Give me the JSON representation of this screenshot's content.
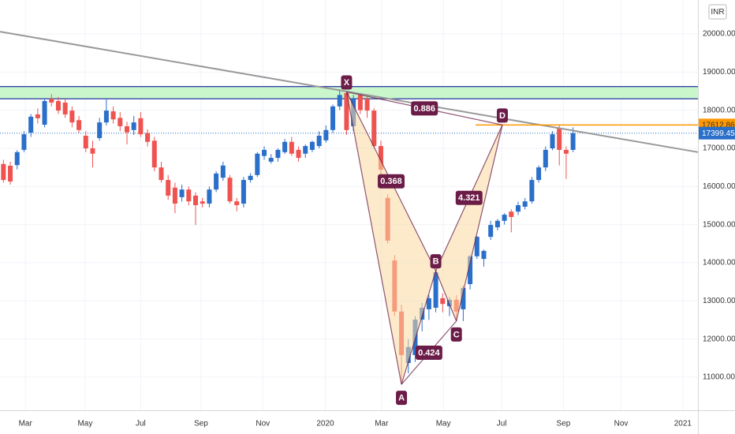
{
  "chart_data": {
    "type": "candlestick",
    "currency": "INR",
    "x": [
      0,
      1,
      2,
      3,
      4,
      5,
      6,
      7,
      8,
      9,
      10,
      11,
      12,
      13,
      14,
      15,
      16,
      17,
      18,
      19,
      20,
      21,
      22,
      23,
      24,
      25,
      26,
      27,
      28,
      29,
      30,
      31,
      32,
      33,
      34,
      35,
      36,
      37,
      38,
      39,
      40,
      41,
      42,
      43,
      44,
      45,
      46,
      47,
      48,
      49,
      50,
      51,
      52,
      53,
      54,
      55,
      56,
      57,
      58,
      59,
      60,
      61,
      62,
      63,
      64,
      65,
      66,
      67,
      68,
      69,
      70,
      71,
      72,
      73,
      74,
      75,
      76,
      77,
      78,
      79,
      80,
      81,
      82,
      83
    ],
    "open": [
      16590,
      16545,
      16560,
      16960,
      17410,
      17890,
      17620,
      18300,
      18240,
      18200,
      17990,
      17740,
      17330,
      17000,
      17270,
      17680,
      17970,
      17800,
      17580,
      17480,
      17790,
      17400,
      17200,
      16500,
      16170,
      15970,
      15720,
      15920,
      15760,
      15610,
      15550,
      15920,
      16230,
      16230,
      15610,
      15550,
      16170,
      16300,
      16800,
      16650,
      16750,
      16900,
      17170,
      16960,
      16860,
      16960,
      17060,
      17210,
      17480,
      18100,
      18450,
      17580,
      18400,
      18300,
      17990,
      17060,
      15700,
      14060,
      12720,
      11370,
      11580,
      12510,
      12780,
      12820,
      13070,
      12860,
      13030,
      12780,
      13440,
      14170,
      14100,
      14680,
      14930,
      15100,
      15340,
      15340,
      15470,
      15610,
      16170,
      16500,
      17000,
      17530,
      16960,
      16960
    ],
    "high": [
      16700,
      16650,
      16950,
      17450,
      17900,
      18050,
      18300,
      18420,
      18350,
      18300,
      18100,
      17850,
      17450,
      17200,
      17800,
      18280,
      18100,
      17950,
      17700,
      17850,
      17950,
      17500,
      17300,
      16650,
      16300,
      16100,
      16050,
      16000,
      15850,
      15700,
      16000,
      16400,
      16650,
      16300,
      15700,
      16250,
      16350,
      16900,
      17050,
      16850,
      17000,
      17250,
      17300,
      17050,
      17100,
      17200,
      17450,
      17600,
      18150,
      18550,
      18500,
      18400,
      18450,
      18350,
      18050,
      17200,
      15800,
      14200,
      12900,
      12000,
      12600,
      12950,
      13150,
      13790,
      13200,
      13100,
      13150,
      13400,
      14200,
      14700,
      14350,
      15100,
      15150,
      15300,
      15400,
      15600,
      15700,
      16250,
      16550,
      17050,
      17450,
      17620,
      17050,
      17550
    ],
    "low": [
      16100,
      16050,
      16450,
      16900,
      17300,
      17650,
      17550,
      18100,
      17900,
      17800,
      17550,
      17400,
      16900,
      16500,
      17200,
      17600,
      17650,
      17450,
      17100,
      17350,
      17300,
      17050,
      16400,
      16100,
      15650,
      15300,
      15600,
      15500,
      14990,
      15450,
      15450,
      15850,
      16150,
      15550,
      15350,
      15450,
      16100,
      16250,
      16700,
      16600,
      16650,
      16850,
      16800,
      16650,
      16750,
      16900,
      17000,
      17150,
      17400,
      18000,
      17350,
      17450,
      17900,
      17800,
      17000,
      16300,
      14500,
      12600,
      10810,
      11100,
      11400,
      12200,
      12500,
      12700,
      12700,
      12600,
      12470,
      12470,
      13300,
      14100,
      13900,
      14600,
      14850,
      15000,
      14800,
      15250,
      15400,
      15550,
      16100,
      16400,
      16950,
      16550,
      16200,
      16900
    ],
    "close": [
      16170,
      16130,
      16900,
      17370,
      17830,
      17790,
      18240,
      18200,
      17990,
      17890,
      17680,
      17480,
      17000,
      16860,
      17680,
      17990,
      17760,
      17580,
      17420,
      17680,
      17370,
      17170,
      16500,
      16170,
      15760,
      15550,
      15920,
      15610,
      15510,
      15550,
      15920,
      16340,
      16550,
      15610,
      15510,
      16170,
      16280,
      16860,
      16960,
      16750,
      16960,
      17170,
      16860,
      16750,
      17060,
      17170,
      17330,
      17480,
      18100,
      18400,
      17480,
      18300,
      18000,
      17990,
      17060,
      16440,
      14580,
      12720,
      11580,
      11790,
      12510,
      12820,
      13070,
      13750,
      12920,
      13030,
      12720,
      13340,
      14170,
      14680,
      14310,
      14990,
      15100,
      15260,
      15200,
      15510,
      15610,
      16170,
      16500,
      16960,
      17370,
      16960,
      16860,
      17399.45
    ],
    "up_color": "#2a6fc9",
    "down_color": "#ef5350",
    "xlim": [
      -0.5,
      101.2
    ],
    "xticks": [
      {
        "value": 3.2,
        "label": "Mar"
      },
      {
        "value": 11.9,
        "label": "May"
      },
      {
        "value": 20,
        "label": "Jul"
      },
      {
        "value": 28.8,
        "label": "Sep"
      },
      {
        "value": 37.8,
        "label": "Nov"
      },
      {
        "value": 46.9,
        "label": "2020"
      },
      {
        "value": 55.1,
        "label": "Mar"
      },
      {
        "value": 64.1,
        "label": "May"
      },
      {
        "value": 72.6,
        "label": "Jul"
      },
      {
        "value": 81.6,
        "label": "Sep"
      },
      {
        "value": 90,
        "label": "Nov"
      },
      {
        "value": 99,
        "label": "2021"
      }
    ],
    "ylim": [
      10130,
      20890
    ],
    "yticks": [
      {
        "value": 11000,
        "label": "11000.00"
      },
      {
        "value": 12000,
        "label": "12000.00"
      },
      {
        "value": 13000,
        "label": "13000.00"
      },
      {
        "value": 14000,
        "label": "14000.00"
      },
      {
        "value": 15000,
        "label": "15000.00"
      },
      {
        "value": 16000,
        "label": "16000.00"
      },
      {
        "value": 17000,
        "label": "17000.00"
      },
      {
        "value": 18000,
        "label": "18000.00"
      },
      {
        "value": 19000,
        "label": "19000.00"
      },
      {
        "value": 20000,
        "label": "20000.00"
      }
    ],
    "grid": true,
    "zone": {
      "low": 18300,
      "high": 18620,
      "fill": "#c9f7cb",
      "line_color": "#3646a8"
    },
    "trendline": {
      "x": [
        -0.5,
        101.2
      ],
      "y": [
        20060,
        16900
      ],
      "color": "#999999"
    },
    "level": {
      "value": 17612.86,
      "label": "17612.86",
      "x_start": 68.8,
      "color": "#ff9800"
    },
    "last_price": {
      "value": 17399.45,
      "label": "17399.45",
      "color": "#2a6fc9"
    },
    "pattern": {
      "color": "#6b1d48",
      "fill": "#f9d9a0",
      "points": [
        {
          "label": "X",
          "x": 50,
          "y": 18480
        },
        {
          "label": "A",
          "x": 58,
          "y": 10810
        },
        {
          "label": "B",
          "x": 63,
          "y": 13790
        },
        {
          "label": "C",
          "x": 66,
          "y": 12470
        },
        {
          "label": "D",
          "x": 72.7,
          "y": 17612.86
        }
      ],
      "ratios": [
        {
          "label": "0.886",
          "from": "X",
          "to": "D"
        },
        {
          "label": "0.368",
          "from": "X",
          "to": "B"
        },
        {
          "label": "4.321",
          "from": "B",
          "to": "D"
        },
        {
          "label": "0.424",
          "from": "A",
          "to": "C"
        }
      ]
    }
  }
}
